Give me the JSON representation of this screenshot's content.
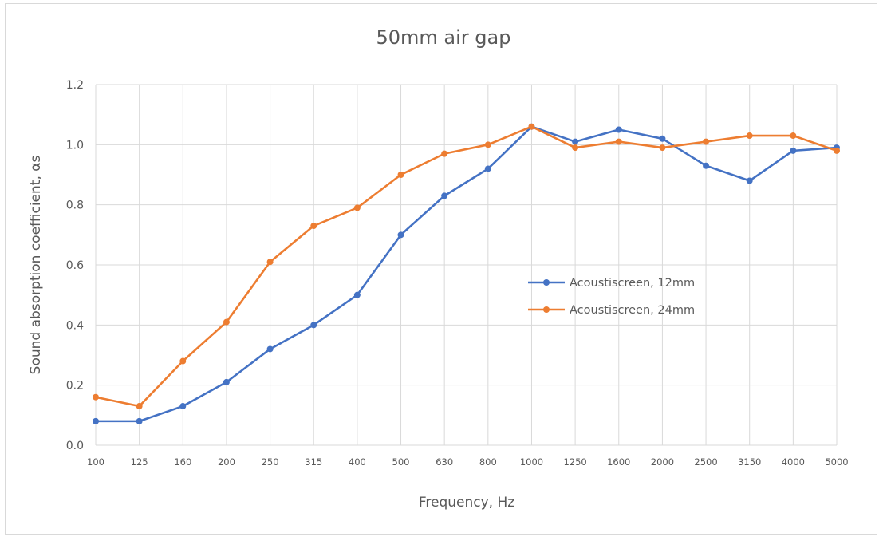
{
  "chart_data": {
    "type": "line",
    "title": "50mm air gap",
    "xlabel": "Frequency, Hz",
    "ylabel": "Sound absorption coefficient, αs",
    "ylim": [
      0,
      1.2
    ],
    "yticks": [
      "0.0",
      "0.2",
      "0.4",
      "0.6",
      "0.8",
      "1.0",
      "1.2"
    ],
    "categories": [
      "100",
      "125",
      "160",
      "200",
      "250",
      "315",
      "400",
      "500",
      "630",
      "800",
      "1000",
      "1250",
      "1600",
      "2000",
      "2500",
      "3150",
      "4000",
      "5000"
    ],
    "grid": true,
    "legend_position": "right",
    "series": [
      {
        "name": "Acoustiscreen, 12mm",
        "color": "#4472c4",
        "values": [
          0.08,
          0.08,
          0.13,
          0.21,
          0.32,
          0.4,
          0.5,
          0.7,
          0.83,
          0.92,
          1.06,
          1.01,
          1.05,
          1.02,
          0.93,
          0.88,
          0.98,
          0.99
        ]
      },
      {
        "name": "Acoustiscreen, 24mm",
        "color": "#ed7d31",
        "values": [
          0.16,
          0.13,
          0.28,
          0.41,
          0.61,
          0.73,
          0.79,
          0.9,
          0.97,
          1.0,
          1.06,
          0.99,
          1.01,
          0.99,
          1.01,
          1.03,
          1.03,
          0.98
        ]
      }
    ]
  }
}
